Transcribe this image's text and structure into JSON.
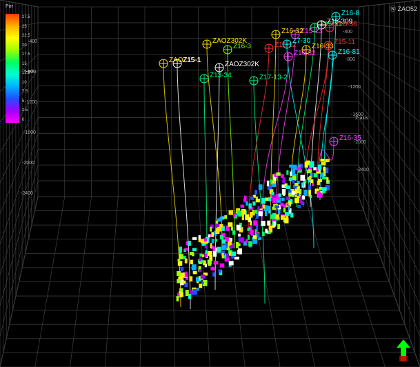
{
  "legend": {
    "title": "Por",
    "ticks": [
      "27.5",
      "25",
      "22.5",
      "20",
      "17.5",
      "15",
      "12.5",
      "10",
      "7.5",
      "5",
      "2.5",
      "0"
    ],
    "axis_label": "Y-axis",
    "colors": [
      "#ff3b00",
      "#ffb000",
      "#ffff00",
      "#a0ff00",
      "#00ff60",
      "#00ffd0",
      "#00b0ff",
      "#2050ff",
      "#a000ff",
      "#ff00ff"
    ]
  },
  "corner_label": "ZAO52",
  "y_axis_ticks": [
    "-400",
    "-800",
    "-1200",
    "-1600",
    "-2000",
    "-2400"
  ],
  "z_axis_label": "Z-axis",
  "z_axis_ticks": [
    "-400",
    "-800",
    "-1200",
    "-1600",
    "-2000",
    "-2400"
  ],
  "wells": [
    {
      "label": "ZAOZ15-1",
      "color": "#ffe000"
    },
    {
      "label": "Z15-1",
      "color": "#ffffff"
    },
    {
      "label": "ZAOZ302K",
      "color": "#ffffff"
    },
    {
      "label": "Z13-34",
      "color": "#00ff80"
    },
    {
      "label": "Z17-13-2",
      "color": "#00ff80"
    },
    {
      "label": "ZAOZ302K",
      "color": "#ffe000"
    },
    {
      "label": "Z16-3",
      "color": "#80ff00"
    },
    {
      "label": "Z15-12",
      "color": "#ff3030"
    },
    {
      "label": "Z16-32",
      "color": "#ff40ff"
    },
    {
      "label": "Z16-33",
      "color": "#ffe000"
    },
    {
      "label": "Z7-30",
      "color": "#00ffff"
    },
    {
      "label": "Z15-31",
      "color": "#00ff60"
    },
    {
      "label": "Z16-8",
      "color": "#00ffff"
    },
    {
      "label": "Z15-309",
      "color": "#ffffff"
    },
    {
      "label": "Z18-36",
      "color": "#ff3030"
    },
    {
      "label": "Z16-35",
      "color": "#ff40ff"
    },
    {
      "label": "Z15-11",
      "color": "#ff3030"
    },
    {
      "label": "Z15-13",
      "color": "#ff40ff"
    },
    {
      "label": "Z16-81",
      "color": "#00ffff"
    },
    {
      "label": "Z16-32",
      "color": "#ffe000"
    }
  ],
  "nav_arrow_color": "#00ff00"
}
